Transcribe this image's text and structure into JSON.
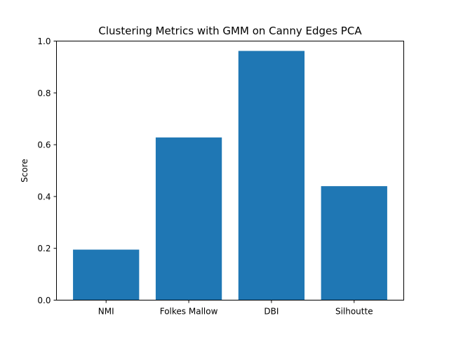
{
  "chart_data": {
    "type": "bar",
    "title": "Clustering Metrics with GMM on Canny Edges PCA",
    "xlabel": "",
    "ylabel": "Score",
    "categories": [
      "NMI",
      "Folkes Mallow",
      "DBI",
      "Silhoutte"
    ],
    "values": [
      0.195,
      0.628,
      0.962,
      0.44
    ],
    "ylim": [
      0,
      1.0
    ],
    "yticks": [
      0.0,
      0.2,
      0.4,
      0.6,
      0.8,
      1.0
    ],
    "ytick_labels": [
      "0.0",
      "0.2",
      "0.4",
      "0.6",
      "0.8",
      "1.0"
    ],
    "bar_color": "#1f77b4",
    "grid": false,
    "legend": "none"
  }
}
